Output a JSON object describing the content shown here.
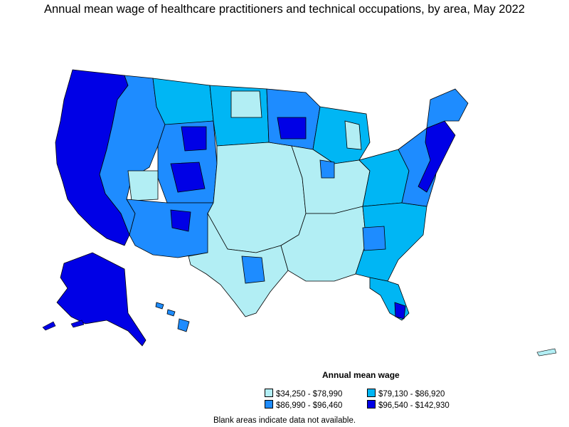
{
  "title": "Annual mean wage of healthcare practitioners and technical occupations, by area, May 2022",
  "legend": {
    "title": "Annual mean wage",
    "items": [
      {
        "label": "$34,250 - $78,990",
        "color": "#b2eef4"
      },
      {
        "label": "$79,130 - $86,920",
        "color": "#00b6f4"
      },
      {
        "label": "$86,990 - $96,460",
        "color": "#1e8cff"
      },
      {
        "label": "$96,540 - $142,930",
        "color": "#0000e6"
      }
    ]
  },
  "note": "Blank areas indicate data not available.",
  "colors": {
    "outline": "#000000",
    "background": "#ffffff"
  }
}
